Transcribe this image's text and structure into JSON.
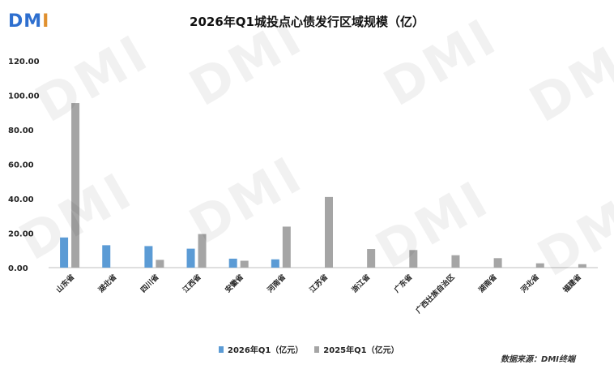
{
  "logo": {
    "d": "D",
    "m": "M",
    "i": "I"
  },
  "watermark_text": "DMI",
  "chart_data": {
    "type": "bar",
    "title": "2026年Q1城投点心债发行区域规模（亿）",
    "categories": [
      "山东省",
      "湖北省",
      "四川省",
      "江西省",
      "安徽省",
      "河南省",
      "江苏省",
      "浙江省",
      "广东省",
      "广西壮族自治区",
      "湖南省",
      "河北省",
      "福建省"
    ],
    "series": [
      {
        "name": "2026年Q1（亿元）",
        "color": "#5b9bd5",
        "values": [
          17.5,
          13.0,
          12.5,
          11.0,
          5.2,
          4.8,
          0,
          0,
          0,
          0,
          0,
          0,
          0
        ]
      },
      {
        "name": "2025年Q1（亿元）",
        "color": "#a5a5a5",
        "values": [
          95.5,
          0,
          4.5,
          19.5,
          4.0,
          23.8,
          41.0,
          10.8,
          10.2,
          7.2,
          5.5,
          2.5,
          2.0
        ]
      }
    ],
    "yticks": [
      "0.00",
      "20.00",
      "40.00",
      "60.00",
      "80.00",
      "100.00",
      "120.00"
    ],
    "ylim": [
      0,
      120
    ],
    "legend_position": "bottom-center",
    "grid": false
  },
  "source": "数据来源：DMI终端"
}
